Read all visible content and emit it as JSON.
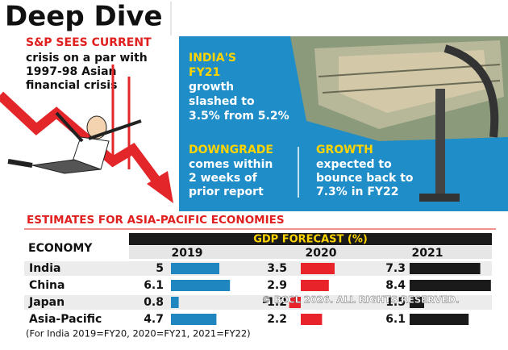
{
  "header": {
    "title": "Deep Dive"
  },
  "lead": {
    "kicker": "S&P SEES CURRENT",
    "lines": [
      "crisis on a par with",
      "1997-98 Asian",
      "financial crisis"
    ]
  },
  "panel": {
    "india": {
      "heading": [
        "INDIA'S",
        "FY21"
      ],
      "lines": [
        "growth",
        "slashed to",
        "3.5% from 5.2%"
      ]
    },
    "downgrade": {
      "heading": "DOWNGRADE",
      "lines": [
        "comes within",
        "2 weeks of",
        "prior report"
      ]
    },
    "growth": {
      "heading": "GROWTH",
      "lines": [
        "expected to",
        "bounce back to",
        "7.3% in FY22"
      ]
    }
  },
  "table": {
    "title": "ESTIMATES FOR ASIA-PACIFIC ECONOMIES",
    "row_header": "ECONOMY",
    "group_header": "GDP FORECAST (%)",
    "years": [
      "2019",
      "2020",
      "2021"
    ],
    "colors": [
      "#1f86c0",
      "#e8232a",
      "#1a1a1a"
    ],
    "rows": [
      {
        "economy": "India",
        "values": [
          5,
          3.5,
          7.3
        ]
      },
      {
        "economy": "China",
        "values": [
          6.1,
          2.9,
          8.4
        ]
      },
      {
        "economy": "Japan",
        "values": [
          0.8,
          -1.2,
          1.5
        ]
      },
      {
        "economy": "Asia-Pacific",
        "values": [
          4.7,
          2.2,
          6.1
        ]
      }
    ],
    "note": "(For India 2019=FY20, 2020=FY21, 2021=FY22)"
  },
  "watermark": "© BCCL 2026. ALL RIGHTS RESERVED."
}
